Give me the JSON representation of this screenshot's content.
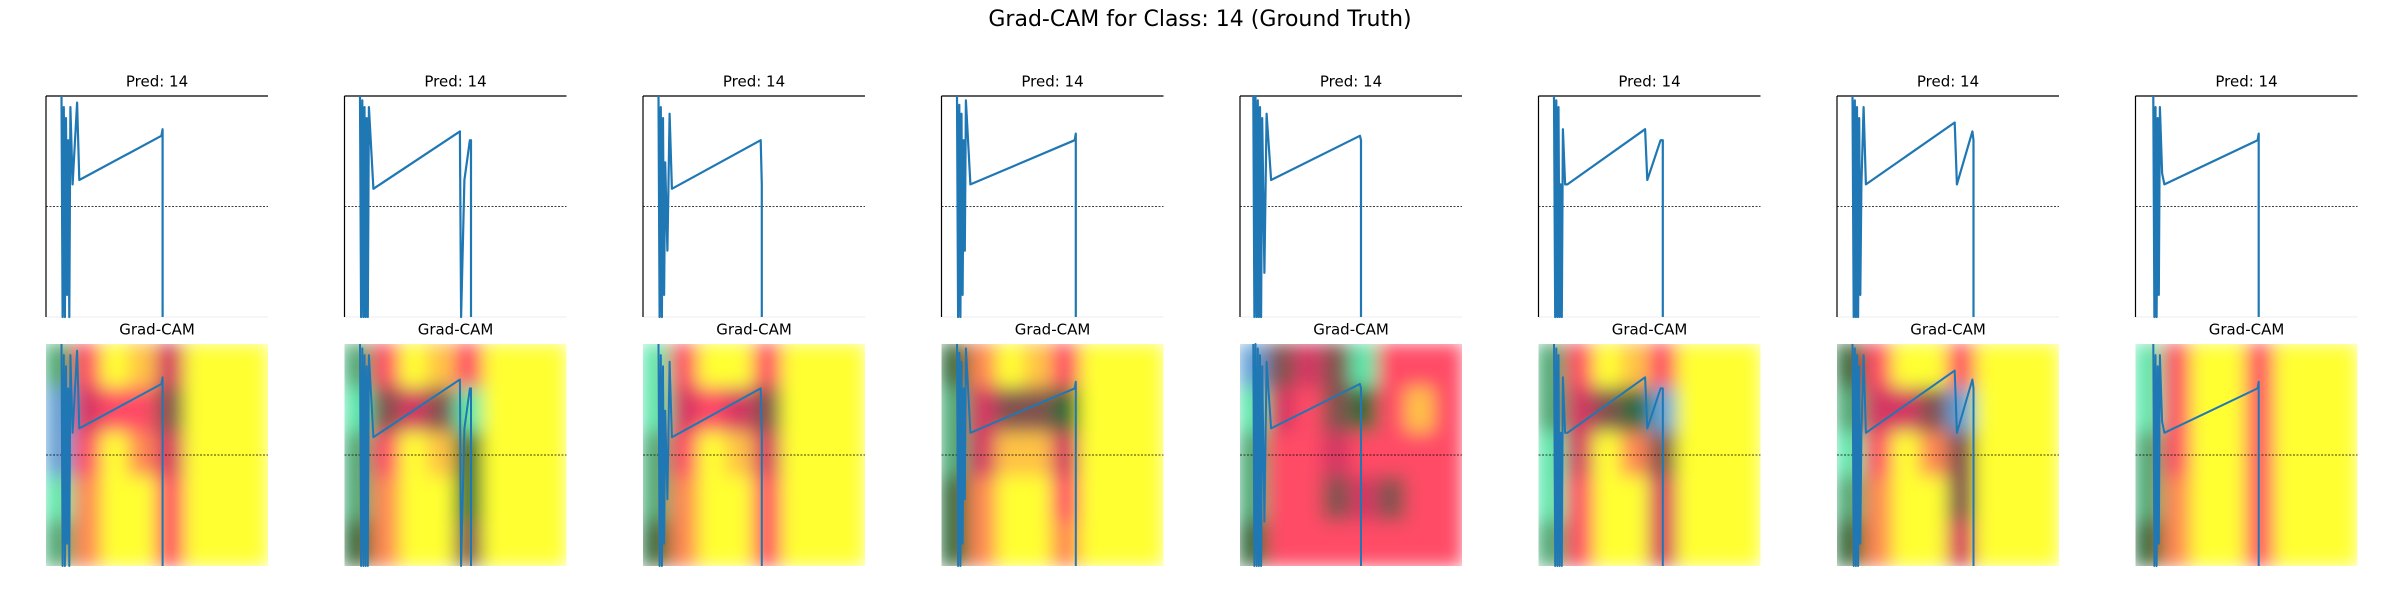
{
  "title": "Grad-CAM for Class: 14 (Ground Truth)",
  "chart_data": [
    {
      "type": "line",
      "title": "Pred: 14",
      "color": "#1f77b4",
      "xlim": [
        0,
        100
      ],
      "ylim": [
        0,
        1
      ],
      "hline": 0.5,
      "x": [
        7,
        7.5,
        8,
        8.5,
        9,
        9.5,
        10,
        10.5,
        11,
        12,
        14,
        15,
        52,
        52.5,
        52.5
      ],
      "values": [
        1,
        0,
        0.95,
        0,
        0.9,
        0.1,
        0.8,
        0,
        0.95,
        0.6,
        0.97,
        0.62,
        0.82,
        0.85,
        0
      ]
    },
    {
      "type": "line",
      "title": "Pred: 14",
      "color": "#1f77b4",
      "xlim": [
        0,
        100
      ],
      "ylim": [
        0,
        1
      ],
      "hline": 0.5,
      "x": [
        7,
        7.5,
        8,
        8.5,
        9,
        9.5,
        10,
        10.5,
        11,
        13,
        52,
        52.5,
        54,
        56.5,
        57,
        57
      ],
      "values": [
        1,
        0,
        0.98,
        0,
        0.95,
        0,
        0.9,
        0,
        0.95,
        0.58,
        0.84,
        0,
        0.62,
        0.8,
        0.8,
        0
      ]
    },
    {
      "type": "line",
      "title": "Pred: 14",
      "color": "#1f77b4",
      "xlim": [
        0,
        100
      ],
      "ylim": [
        0,
        1
      ],
      "hline": 0.5,
      "x": [
        7,
        7.5,
        8,
        8.5,
        9,
        9.5,
        10,
        11,
        12,
        13,
        53,
        53.5,
        53.5
      ],
      "values": [
        1,
        0,
        0.95,
        0,
        0.9,
        0.1,
        0.7,
        0.3,
        0.92,
        0.58,
        0.8,
        0.6,
        0
      ]
    },
    {
      "type": "line",
      "title": "Pred: 14",
      "color": "#1f77b4",
      "xlim": [
        0,
        100
      ],
      "ylim": [
        0,
        1
      ],
      "hline": 0.5,
      "x": [
        7,
        7.5,
        8,
        8.5,
        9,
        9.5,
        10,
        10.5,
        11,
        13,
        60,
        60.5,
        60.5
      ],
      "values": [
        1,
        0,
        0.96,
        0,
        0.92,
        0.1,
        0.8,
        0.3,
        0.98,
        0.6,
        0.8,
        0.83,
        0
      ]
    },
    {
      "type": "line",
      "title": "Pred: 14",
      "color": "#1f77b4",
      "xlim": [
        0,
        100
      ],
      "ylim": [
        0,
        1
      ],
      "hline": 0.5,
      "x": [
        6,
        6.5,
        7,
        7.5,
        8,
        8.5,
        9,
        9.5,
        10,
        11,
        12,
        14,
        54,
        54.5,
        54.5
      ],
      "values": [
        1,
        0,
        1,
        0,
        0.98,
        0,
        0.95,
        0,
        0.9,
        0.2,
        0.92,
        0.62,
        0.82,
        0.8,
        0
      ]
    },
    {
      "type": "line",
      "title": "Pred: 14",
      "color": "#1f77b4",
      "xlim": [
        0,
        100
      ],
      "ylim": [
        0,
        1
      ],
      "hline": 0.5,
      "x": [
        7,
        7.5,
        8,
        8.5,
        9,
        9.5,
        10,
        10.5,
        11,
        12,
        13,
        48,
        49,
        55,
        56,
        56
      ],
      "values": [
        1,
        0,
        0.98,
        0,
        0.95,
        0,
        0.6,
        0,
        0.85,
        0.6,
        0.6,
        0.85,
        0.62,
        0.8,
        0.8,
        0
      ]
    },
    {
      "type": "line",
      "title": "Pred: 14",
      "color": "#1f77b4",
      "xlim": [
        0,
        100
      ],
      "ylim": [
        0,
        1
      ],
      "hline": 0.5,
      "x": [
        7,
        7.5,
        8,
        8.5,
        9,
        9.5,
        10,
        10.5,
        11,
        12,
        13,
        53,
        54,
        61,
        61.5,
        61.5
      ],
      "values": [
        1,
        0,
        0.98,
        0,
        0.95,
        0,
        0.9,
        0.1,
        0.6,
        0.95,
        0.6,
        0.88,
        0.6,
        0.84,
        0.8,
        0
      ]
    },
    {
      "type": "line",
      "title": "Pred: 14",
      "color": "#1f77b4",
      "xlim": [
        0,
        100
      ],
      "ylim": [
        0,
        1
      ],
      "hline": 0.5,
      "x": [
        8,
        8.5,
        9,
        9.5,
        10,
        10.5,
        11,
        12,
        13,
        55,
        55.5,
        55.5
      ],
      "values": [
        1,
        0,
        0.95,
        0,
        0.9,
        0.1,
        0.95,
        0.65,
        0.6,
        0.8,
        0.83,
        0
      ]
    },
    {
      "type": "heatmap",
      "title": "Grad-CAM",
      "color": "#1f77b4",
      "xlim": [
        0,
        100
      ],
      "ylim": [
        0,
        1
      ],
      "hline": 0.5,
      "x": [
        7,
        7.5,
        8,
        8.5,
        9,
        9.5,
        10,
        10.5,
        11,
        12,
        14,
        15,
        52,
        52.5,
        52.5
      ],
      "values": [
        1,
        0,
        0.95,
        0,
        0.9,
        0.1,
        0.8,
        0,
        0.95,
        0.6,
        0.97,
        0.62,
        0.82,
        0.85,
        0
      ],
      "heat": [
        [
          0.7,
          0.3,
          0,
          0.1,
          0.4,
          0,
          0,
          0
        ],
        [
          0.9,
          0.4,
          0.3,
          0.3,
          0.5,
          0,
          0,
          0
        ],
        [
          0.9,
          0.3,
          0,
          0.2,
          0.4,
          0,
          0,
          0
        ],
        [
          0.8,
          0.2,
          0,
          0,
          0.3,
          0,
          0,
          0
        ],
        [
          0.7,
          0.2,
          0,
          0,
          0.3,
          0,
          0,
          0
        ]
      ]
    },
    {
      "type": "heatmap",
      "title": "Grad-CAM",
      "color": "#1f77b4",
      "xlim": [
        0,
        100
      ],
      "ylim": [
        0,
        1
      ],
      "hline": 0.5,
      "x": [
        7,
        7.5,
        8,
        8.5,
        9,
        9.5,
        10,
        10.5,
        11,
        13,
        52,
        52.5,
        54,
        56.5,
        57,
        57
      ],
      "values": [
        1,
        0,
        0.98,
        0,
        0.95,
        0,
        0.9,
        0,
        0.95,
        0.58,
        0.84,
        0,
        0.62,
        0.8,
        0.8,
        0
      ],
      "heat": [
        [
          0.7,
          0.3,
          0,
          0.1,
          0.3,
          0,
          0,
          0
        ],
        [
          0.8,
          0.5,
          0.4,
          0.5,
          0.8,
          0,
          0,
          0
        ],
        [
          0.7,
          0.3,
          0,
          0.1,
          0.6,
          0,
          0,
          0
        ],
        [
          0.7,
          0.2,
          0,
          0,
          0.6,
          0,
          0,
          0
        ],
        [
          0.6,
          0.2,
          0,
          0,
          0.5,
          0,
          0,
          0
        ]
      ]
    },
    {
      "type": "heatmap",
      "title": "Grad-CAM",
      "color": "#1f77b4",
      "xlim": [
        0,
        100
      ],
      "ylim": [
        0,
        1
      ],
      "hline": 0.5,
      "x": [
        7,
        7.5,
        8,
        8.5,
        9,
        9.5,
        10,
        11,
        12,
        13,
        53,
        53.5,
        53.5
      ],
      "values": [
        1,
        0,
        0.95,
        0,
        0.9,
        0.1,
        0.7,
        0.3,
        0.92,
        0.58,
        0.8,
        0.6,
        0
      ],
      "heat": [
        [
          0.8,
          0.3,
          0,
          0,
          0.3,
          0,
          0,
          0
        ],
        [
          0.8,
          0.4,
          0.3,
          0.4,
          0.5,
          0,
          0,
          0
        ],
        [
          0.7,
          0.3,
          0,
          0.1,
          0.4,
          0,
          0,
          0
        ],
        [
          0.7,
          0.2,
          0,
          0,
          0.3,
          0,
          0,
          0
        ],
        [
          0.6,
          0.2,
          0,
          0,
          0.3,
          0,
          0,
          0
        ]
      ]
    },
    {
      "type": "heatmap",
      "title": "Grad-CAM",
      "color": "#1f77b4",
      "xlim": [
        0,
        100
      ],
      "ylim": [
        0,
        1
      ],
      "hline": 0.5,
      "x": [
        7,
        7.5,
        8,
        8.5,
        9,
        9.5,
        10,
        10.5,
        11,
        13,
        60,
        60.5,
        60.5
      ],
      "values": [
        1,
        0,
        0.96,
        0,
        0.92,
        0.1,
        0.8,
        0.3,
        0.98,
        0.6,
        0.8,
        0.83,
        0
      ],
      "heat": [
        [
          0.6,
          0.2,
          0,
          0.1,
          0.3,
          0,
          0,
          0
        ],
        [
          0.7,
          0.4,
          0.5,
          0.5,
          0.6,
          0,
          0,
          0
        ],
        [
          0.7,
          0.4,
          0.1,
          0.1,
          0.4,
          0,
          0,
          0
        ],
        [
          0.6,
          0.2,
          0,
          0,
          0.3,
          0,
          0,
          0
        ],
        [
          0.6,
          0.2,
          0,
          0,
          0.2,
          0,
          0,
          0
        ]
      ]
    },
    {
      "type": "heatmap",
      "title": "Grad-CAM",
      "color": "#1f77b4",
      "xlim": [
        0,
        100
      ],
      "ylim": [
        0,
        1
      ],
      "hline": 0.5,
      "x": [
        6,
        6.5,
        7,
        7.5,
        8,
        8.5,
        9,
        9.5,
        10,
        11,
        12,
        14,
        54,
        54.5,
        54.5
      ],
      "values": [
        1,
        0,
        1,
        0,
        0.98,
        0,
        0.95,
        0,
        0.9,
        0.2,
        0.92,
        0.62,
        0.82,
        0.8,
        0
      ],
      "heat": [
        [
          0.9,
          0.5,
          0.4,
          0.5,
          0.8,
          0.3,
          0.3,
          0.3
        ],
        [
          0.8,
          0.4,
          0.3,
          0.5,
          0.6,
          0.3,
          0.1,
          0.3
        ],
        [
          0.7,
          0.3,
          0.3,
          0.4,
          0.3,
          0.3,
          0.3,
          0.3
        ],
        [
          0.7,
          0.3,
          0.3,
          0.5,
          0.4,
          0.5,
          0.3,
          0.3
        ],
        [
          0.6,
          0.3,
          0.3,
          0.3,
          0.3,
          0.3,
          0.3,
          0.3
        ]
      ]
    },
    {
      "type": "heatmap",
      "title": "Grad-CAM",
      "color": "#1f77b4",
      "xlim": [
        0,
        100
      ],
      "ylim": [
        0,
        1
      ],
      "hline": 0.5,
      "x": [
        7,
        7.5,
        8,
        8.5,
        9,
        9.5,
        10,
        10.5,
        11,
        12,
        13,
        48,
        49,
        55,
        56,
        56
      ],
      "values": [
        1,
        0,
        0.98,
        0,
        0.95,
        0,
        0.6,
        0,
        0.85,
        0.6,
        0.6,
        0.85,
        0.62,
        0.8,
        0.8,
        0
      ],
      "heat": [
        [
          0.7,
          0.3,
          0,
          0.1,
          0.3,
          0,
          0,
          0
        ],
        [
          0.7,
          0.4,
          0.5,
          0.6,
          0.9,
          0,
          0,
          0
        ],
        [
          0.8,
          0.4,
          0,
          0.2,
          0.5,
          0,
          0,
          0
        ],
        [
          0.8,
          0.3,
          0,
          0,
          0.4,
          0,
          0,
          0
        ],
        [
          0.7,
          0.3,
          0,
          0,
          0.4,
          0,
          0,
          0
        ]
      ]
    },
    {
      "type": "heatmap",
      "title": "Grad-CAM",
      "color": "#1f77b4",
      "xlim": [
        0,
        100
      ],
      "ylim": [
        0,
        1
      ],
      "hline": 0.5,
      "x": [
        7,
        7.5,
        8,
        8.5,
        9,
        9.5,
        10,
        10.5,
        11,
        12,
        13,
        53,
        54,
        61,
        61.5,
        61.5
      ],
      "values": [
        1,
        0,
        0.98,
        0,
        0.95,
        0,
        0.9,
        0.1,
        0.6,
        0.95,
        0.6,
        0.88,
        0.6,
        0.84,
        0.8,
        0
      ],
      "heat": [
        [
          0.6,
          0.3,
          0,
          0,
          0.3,
          0,
          0,
          0
        ],
        [
          0.7,
          0.4,
          0.4,
          0.5,
          0.9,
          0,
          0,
          0
        ],
        [
          0.8,
          0.3,
          0,
          0.2,
          0.5,
          0,
          0,
          0
        ],
        [
          0.7,
          0.2,
          0,
          0,
          0.5,
          0,
          0,
          0
        ],
        [
          0.6,
          0.2,
          0,
          0,
          0.4,
          0,
          0,
          0
        ]
      ]
    },
    {
      "type": "heatmap",
      "title": "Grad-CAM",
      "color": "#1f77b4",
      "xlim": [
        0,
        100
      ],
      "ylim": [
        0,
        1
      ],
      "hline": 0.5,
      "x": [
        8,
        8.5,
        9,
        9.5,
        10,
        10.5,
        11,
        12,
        13,
        55,
        55.5,
        55.5
      ],
      "values": [
        1,
        0,
        0.95,
        0,
        0.9,
        0.1,
        0.95,
        0.65,
        0.6,
        0.8,
        0.83,
        0
      ],
      "heat": [
        [
          0.8,
          0.3,
          0,
          0,
          0.3,
          0,
          0,
          0
        ],
        [
          0.8,
          0.3,
          0,
          0,
          0.3,
          0,
          0,
          0
        ],
        [
          0.7,
          0.3,
          0,
          0,
          0.3,
          0,
          0,
          0
        ],
        [
          0.7,
          0.2,
          0,
          0,
          0.3,
          0,
          0,
          0
        ],
        [
          0.6,
          0.2,
          0,
          0,
          0.3,
          0,
          0,
          0
        ]
      ]
    }
  ]
}
